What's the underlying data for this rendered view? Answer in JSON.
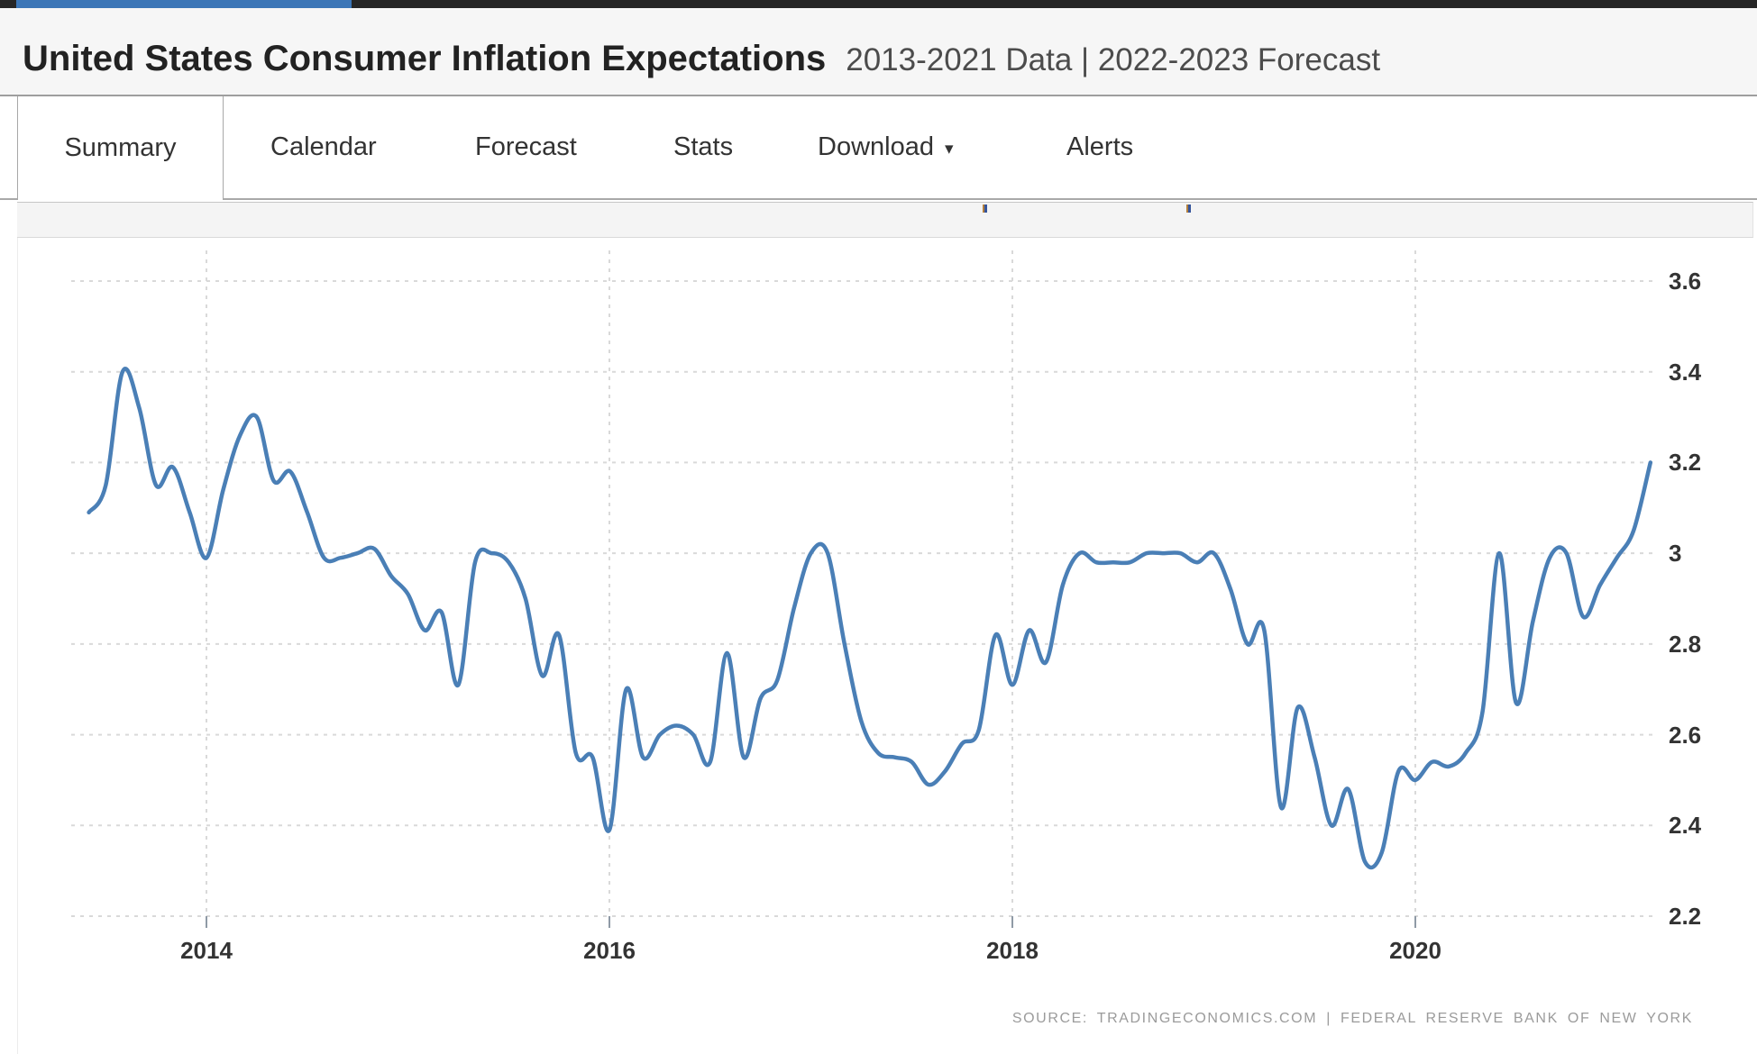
{
  "topbar": {
    "accent_color": "#3c76b7",
    "bar_color": "#262626"
  },
  "header": {
    "title": "United States Consumer Inflation Expectations",
    "subtitle": "2013-2021 Data | 2022-2023 Forecast"
  },
  "tabs": [
    {
      "label": "Summary",
      "active": true,
      "has_dropdown": false
    },
    {
      "label": "Calendar",
      "active": false,
      "has_dropdown": false
    },
    {
      "label": "Forecast",
      "active": false,
      "has_dropdown": false
    },
    {
      "label": "Stats",
      "active": false,
      "has_dropdown": false
    },
    {
      "label": "Download",
      "active": false,
      "has_dropdown": true
    },
    {
      "label": "Alerts",
      "active": false,
      "has_dropdown": false
    }
  ],
  "chart_data": {
    "type": "line",
    "title": "United States Consumer Inflation Expectations",
    "series_name": "Consumer Inflation Expectations (%)",
    "line_color": "#4a7fb6",
    "grid": "dashed",
    "legend": "none",
    "xlabel": "",
    "ylabel": "",
    "ylim": [
      2.2,
      3.6
    ],
    "y_ticks": [
      3.6,
      3.4,
      3.2,
      3,
      2.8,
      2.6,
      2.4,
      2.2
    ],
    "y_tick_labels": [
      "3.6",
      "3.4",
      "3.2",
      "3",
      "2.8",
      "2.6",
      "2.4",
      "2.2"
    ],
    "x_tick_years": [
      2014,
      2016,
      2018,
      2020
    ],
    "x_tick_labels": [
      "2014",
      "2016",
      "2018",
      "2020"
    ],
    "points": [
      [
        "2013-06",
        3.09
      ],
      [
        "2013-07",
        3.15
      ],
      [
        "2013-08",
        3.4
      ],
      [
        "2013-09",
        3.32
      ],
      [
        "2013-10",
        3.15
      ],
      [
        "2013-11",
        3.19
      ],
      [
        "2013-12",
        3.09
      ],
      [
        "2014-01",
        2.99
      ],
      [
        "2014-02",
        3.14
      ],
      [
        "2014-03",
        3.26
      ],
      [
        "2014-04",
        3.3
      ],
      [
        "2014-05",
        3.16
      ],
      [
        "2014-06",
        3.18
      ],
      [
        "2014-07",
        3.09
      ],
      [
        "2014-08",
        2.99
      ],
      [
        "2014-09",
        2.99
      ],
      [
        "2014-10",
        3.0
      ],
      [
        "2014-11",
        3.01
      ],
      [
        "2014-12",
        2.95
      ],
      [
        "2015-01",
        2.91
      ],
      [
        "2015-02",
        2.83
      ],
      [
        "2015-03",
        2.87
      ],
      [
        "2015-04",
        2.71
      ],
      [
        "2015-05",
        2.98
      ],
      [
        "2015-06",
        3.0
      ],
      [
        "2015-07",
        2.98
      ],
      [
        "2015-08",
        2.9
      ],
      [
        "2015-09",
        2.73
      ],
      [
        "2015-10",
        2.82
      ],
      [
        "2015-11",
        2.56
      ],
      [
        "2015-12",
        2.55
      ],
      [
        "2016-01",
        2.39
      ],
      [
        "2016-02",
        2.7
      ],
      [
        "2016-03",
        2.55
      ],
      [
        "2016-04",
        2.6
      ],
      [
        "2016-05",
        2.62
      ],
      [
        "2016-06",
        2.6
      ],
      [
        "2016-07",
        2.54
      ],
      [
        "2016-08",
        2.78
      ],
      [
        "2016-09",
        2.55
      ],
      [
        "2016-10",
        2.68
      ],
      [
        "2016-11",
        2.72
      ],
      [
        "2016-12",
        2.88
      ],
      [
        "2017-01",
        3.0
      ],
      [
        "2017-02",
        3.0
      ],
      [
        "2017-03",
        2.8
      ],
      [
        "2017-04",
        2.63
      ],
      [
        "2017-05",
        2.56
      ],
      [
        "2017-06",
        2.55
      ],
      [
        "2017-07",
        2.54
      ],
      [
        "2017-08",
        2.49
      ],
      [
        "2017-09",
        2.52
      ],
      [
        "2017-10",
        2.58
      ],
      [
        "2017-11",
        2.61
      ],
      [
        "2017-12",
        2.82
      ],
      [
        "2018-01",
        2.71
      ],
      [
        "2018-02",
        2.83
      ],
      [
        "2018-03",
        2.76
      ],
      [
        "2018-04",
        2.93
      ],
      [
        "2018-05",
        3.0
      ],
      [
        "2018-06",
        2.98
      ],
      [
        "2018-07",
        2.98
      ],
      [
        "2018-08",
        2.98
      ],
      [
        "2018-09",
        3.0
      ],
      [
        "2018-10",
        3.0
      ],
      [
        "2018-11",
        3.0
      ],
      [
        "2018-12",
        2.98
      ],
      [
        "2019-01",
        3.0
      ],
      [
        "2019-02",
        2.92
      ],
      [
        "2019-03",
        2.8
      ],
      [
        "2019-04",
        2.83
      ],
      [
        "2019-05",
        2.44
      ],
      [
        "2019-06",
        2.66
      ],
      [
        "2019-07",
        2.55
      ],
      [
        "2019-08",
        2.4
      ],
      [
        "2019-09",
        2.48
      ],
      [
        "2019-10",
        2.32
      ],
      [
        "2019-11",
        2.34
      ],
      [
        "2019-12",
        2.52
      ],
      [
        "2020-01",
        2.5
      ],
      [
        "2020-02",
        2.54
      ],
      [
        "2020-03",
        2.53
      ],
      [
        "2020-04",
        2.56
      ],
      [
        "2020-05",
        2.65
      ],
      [
        "2020-06",
        3.0
      ],
      [
        "2020-07",
        2.67
      ],
      [
        "2020-08",
        2.85
      ],
      [
        "2020-09",
        2.99
      ],
      [
        "2020-10",
        3.0
      ],
      [
        "2020-11",
        2.86
      ],
      [
        "2020-12",
        2.93
      ],
      [
        "2021-01",
        2.99
      ],
      [
        "2021-02",
        3.05
      ],
      [
        "2021-03",
        3.2
      ]
    ]
  },
  "source_line": "SOURCE: TRADINGECONOMICS.COM | FEDERAL RESERVE BANK OF NEW YORK"
}
